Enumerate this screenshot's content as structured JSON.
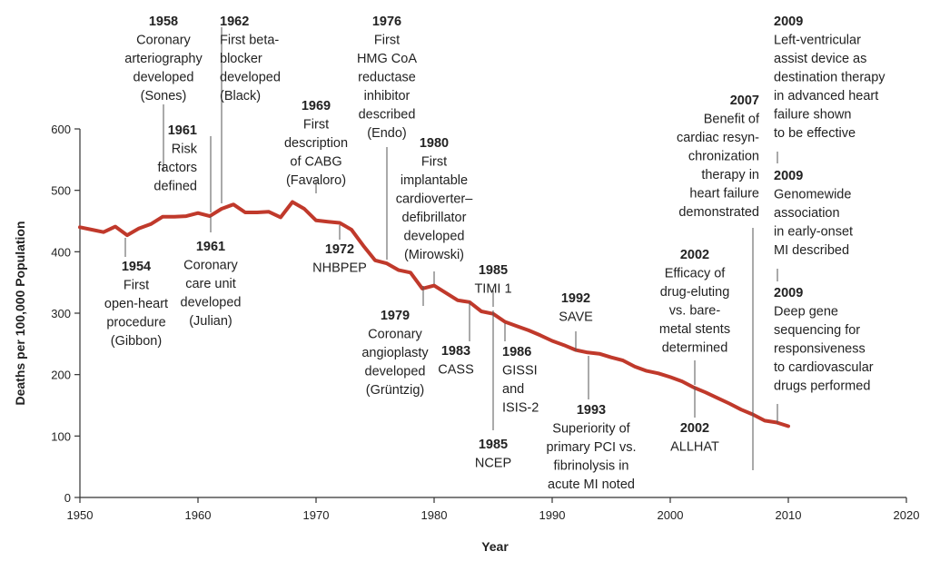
{
  "chart_data": {
    "type": "line",
    "title": "",
    "xlabel": "Year",
    "ylabel": "Deaths per 100,000 Population",
    "xlim": [
      1950,
      2020
    ],
    "ylim": [
      0,
      600
    ],
    "x_ticks": [
      "1950",
      "1960",
      "1970",
      "1980",
      "1990",
      "2000",
      "2010",
      "2020"
    ],
    "y_ticks": [
      "0",
      "100",
      "200",
      "300",
      "400",
      "500",
      "600"
    ],
    "line_color": "#c0392b",
    "grid": false,
    "series": [
      {
        "x": [
          1950,
          1951,
          1952,
          1953,
          1954,
          1955,
          1956,
          1957,
          1958,
          1959,
          1960,
          1961,
          1962,
          1963,
          1964,
          1965,
          1966,
          1967,
          1968,
          1969,
          1970,
          1971,
          1972,
          1973,
          1974,
          1975,
          1976,
          1977,
          1978,
          1979,
          1980,
          1981,
          1982,
          1983,
          1984,
          1985,
          1986,
          1987,
          1988,
          1989,
          1990,
          1991,
          1992,
          1993,
          1994,
          1995,
          1996,
          1997,
          1998,
          1999,
          2000,
          2001,
          2002,
          2003,
          2004,
          2005,
          2006,
          2007,
          2008,
          2009,
          2010
        ],
        "values": [
          440,
          436,
          432,
          441,
          427,
          438,
          445,
          457,
          457,
          458,
          463,
          458,
          470,
          477,
          464,
          464,
          465,
          456,
          481,
          470,
          451,
          449,
          447,
          436,
          410,
          386,
          381,
          370,
          366,
          340,
          345,
          333,
          321,
          318,
          303,
          299,
          286,
          279,
          272,
          264,
          255,
          248,
          240,
          236,
          234,
          228,
          223,
          213,
          206,
          202,
          196,
          189,
          179,
          171,
          162,
          153,
          143,
          135,
          125,
          122,
          116
        ]
      }
    ],
    "annotations": [
      {
        "year": "1954",
        "lines": [
          "First",
          "open-heart",
          "procedure",
          "(Gibbon)"
        ]
      },
      {
        "year": "1958",
        "lines": [
          "Coronary",
          "arteriography",
          "developed",
          "(Sones)"
        ]
      },
      {
        "year": "1961",
        "lines": [
          "Risk",
          "factors",
          "defined"
        ]
      },
      {
        "year": "1961",
        "lines": [
          "Coronary",
          "care unit",
          "developed",
          "(Julian)"
        ]
      },
      {
        "year": "1962",
        "lines": [
          "First beta-",
          "blocker",
          "developed",
          "(Black)"
        ]
      },
      {
        "year": "1969",
        "lines": [
          "First",
          "description",
          "of CABG",
          "(Favaloro)"
        ]
      },
      {
        "year": "1972",
        "lines": [
          "NHBPEP"
        ]
      },
      {
        "year": "1976",
        "lines": [
          "First",
          "HMG CoA",
          "reductase",
          "inhibitor",
          "described",
          "(Endo)"
        ]
      },
      {
        "year": "1979",
        "lines": [
          "Coronary",
          "angioplasty",
          "developed",
          "(Grüntzig)"
        ]
      },
      {
        "year": "1980",
        "lines": [
          "First",
          "implantable",
          "cardioverter–",
          "defibrillator",
          "developed",
          "(Mirowski)"
        ]
      },
      {
        "year": "1983",
        "lines": [
          "CASS"
        ]
      },
      {
        "year": "1985",
        "lines": [
          "TIMI 1"
        ]
      },
      {
        "year": "1985",
        "lines": [
          "NCEP"
        ]
      },
      {
        "year": "1986",
        "lines": [
          "GISSI",
          "and",
          "ISIS-2"
        ]
      },
      {
        "year": "1992",
        "lines": [
          "SAVE"
        ]
      },
      {
        "year": "1993",
        "lines": [
          "Superiority of",
          "primary PCI vs.",
          "fibrinolysis in",
          "acute MI noted"
        ]
      },
      {
        "year": "2002",
        "lines": [
          "Efficacy of",
          "drug-eluting",
          "vs. bare-",
          "metal stents",
          "determined"
        ]
      },
      {
        "year": "2002",
        "lines": [
          "ALLHAT"
        ]
      },
      {
        "year": "2007",
        "lines": [
          "Benefit of",
          "cardiac resyn-",
          "chronization",
          "therapy in",
          "heart failure",
          "demonstrated"
        ]
      },
      {
        "year": "2009",
        "lines": [
          "Left-ventricular",
          "assist device as",
          "destination therapy",
          "in advanced heart",
          "failure shown",
          "to be effective"
        ]
      },
      {
        "year": "2009",
        "lines": [
          "Genomewide",
          "association",
          "in early-onset",
          "MI described"
        ]
      },
      {
        "year": "2009",
        "lines": [
          "Deep gene",
          "sequencing for",
          "responsiveness",
          "to cardiovascular",
          "drugs performed"
        ]
      }
    ]
  }
}
